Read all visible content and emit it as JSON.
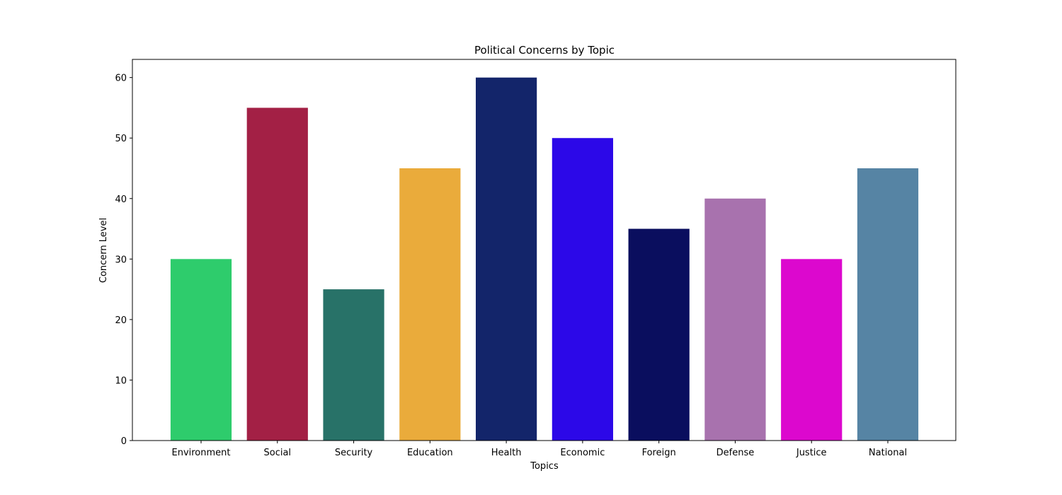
{
  "chart_data": {
    "type": "bar",
    "title": "Political Concerns by Topic",
    "xlabel": "Topics",
    "ylabel": "Concern Level",
    "categories": [
      "Environment",
      "Social",
      "Security",
      "Education",
      "Health",
      "Economic",
      "Foreign",
      "Defense",
      "Justice",
      "National"
    ],
    "values": [
      30,
      55,
      25,
      45,
      60,
      50,
      35,
      40,
      30,
      45
    ],
    "colors": [
      "#2ecc6c",
      "#a32045",
      "#287268",
      "#eaab3b",
      "#13256a",
      "#2c08e8",
      "#0a0e5e",
      "#a872ae",
      "#dc08ce",
      "#5684a4"
    ],
    "ylim": [
      0,
      63
    ],
    "yticks": [
      0,
      10,
      20,
      30,
      40,
      50,
      60
    ],
    "grid": false,
    "legend": "none"
  }
}
